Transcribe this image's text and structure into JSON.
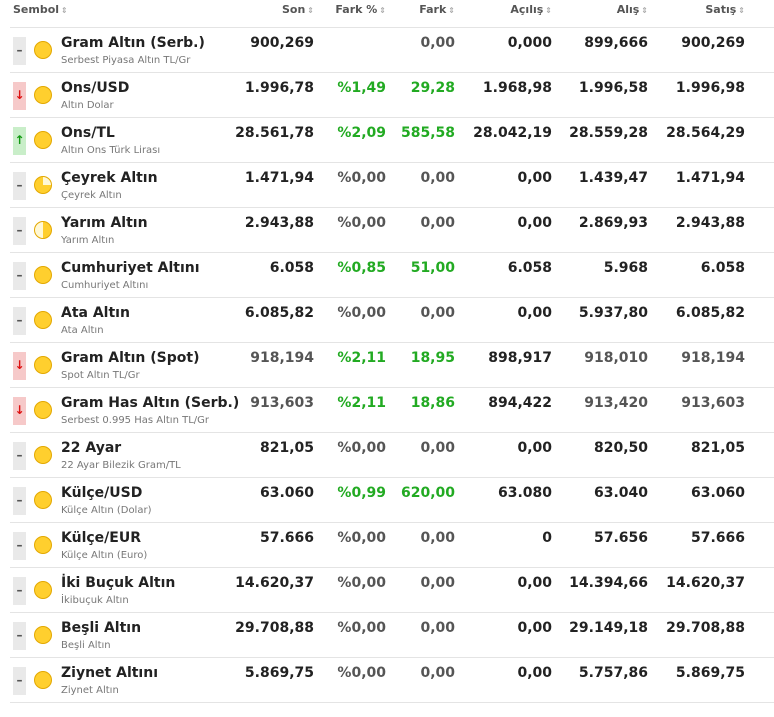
{
  "header": {
    "sembol": "Sembol",
    "son": "Son",
    "fark_pct": "Fark %",
    "fark": "Fark",
    "acilis": "Açılış",
    "alis": "Alış",
    "satis": "Satış",
    "sort_glyph": "⇕"
  },
  "colors": {
    "up": "#22aa22",
    "down": "#dd1111",
    "coin": "#ffcf2e"
  },
  "rows": [
    {
      "trend": "flat",
      "coin": "full",
      "name": "Gram Altın (Serb.)",
      "sub": "Serbest Piyasa Altın TL/Gr",
      "son": "900,269",
      "pct": "",
      "fark": "0,00",
      "acilis": "0,000",
      "alis": "899,666",
      "satis": "900,269",
      "pct_color": "grey",
      "fark_color": "grey",
      "muted": false
    },
    {
      "trend": "down",
      "coin": "full",
      "name": "Ons/USD",
      "sub": "Altın Dolar",
      "son": "1.996,78",
      "pct": "%1,49",
      "fark": "29,28",
      "acilis": "1.968,98",
      "alis": "1.996,58",
      "satis": "1.996,98",
      "pct_color": "green",
      "fark_color": "green",
      "muted": false
    },
    {
      "trend": "up",
      "coin": "full",
      "name": "Ons/TL",
      "sub": "Altın Ons Türk Lirası",
      "son": "28.561,78",
      "pct": "%2,09",
      "fark": "585,58",
      "acilis": "28.042,19",
      "alis": "28.559,28",
      "satis": "28.564,29",
      "pct_color": "green",
      "fark_color": "green",
      "muted": false
    },
    {
      "trend": "flat",
      "coin": "quarter",
      "name": "Çeyrek Altın",
      "sub": "Çeyrek Altın",
      "son": "1.471,94",
      "pct": "%0,00",
      "fark": "0,00",
      "acilis": "0,00",
      "alis": "1.439,47",
      "satis": "1.471,94",
      "pct_color": "grey",
      "fark_color": "grey",
      "muted": false
    },
    {
      "trend": "flat",
      "coin": "half",
      "name": "Yarım Altın",
      "sub": "Yarım Altın",
      "son": "2.943,88",
      "pct": "%0,00",
      "fark": "0,00",
      "acilis": "0,00",
      "alis": "2.869,93",
      "satis": "2.943,88",
      "pct_color": "grey",
      "fark_color": "grey",
      "muted": false
    },
    {
      "trend": "flat",
      "coin": "full",
      "name": "Cumhuriyet Altını",
      "sub": "Cumhuriyet Altını",
      "son": "6.058",
      "pct": "%0,85",
      "fark": "51,00",
      "acilis": "6.058",
      "alis": "5.968",
      "satis": "6.058",
      "pct_color": "green",
      "fark_color": "green",
      "muted": false
    },
    {
      "trend": "flat",
      "coin": "full",
      "name": "Ata Altın",
      "sub": "Ata Altın",
      "son": "6.085,82",
      "pct": "%0,00",
      "fark": "0,00",
      "acilis": "0,00",
      "alis": "5.937,80",
      "satis": "6.085,82",
      "pct_color": "grey",
      "fark_color": "grey",
      "muted": false
    },
    {
      "trend": "down",
      "coin": "full",
      "name": "Gram Altın (Spot)",
      "sub": "Spot Altın TL/Gr",
      "son": "918,194",
      "pct": "%2,11",
      "fark": "18,95",
      "acilis": "898,917",
      "alis": "918,010",
      "satis": "918,194",
      "pct_color": "green",
      "fark_color": "green",
      "muted": true
    },
    {
      "trend": "down",
      "coin": "full",
      "name": "Gram Has Altın (Serb.)",
      "sub": "Serbest 0.995 Has Altın TL/Gr",
      "son": "913,603",
      "pct": "%2,11",
      "fark": "18,86",
      "acilis": "894,422",
      "alis": "913,420",
      "satis": "913,603",
      "pct_color": "green",
      "fark_color": "green",
      "muted": true
    },
    {
      "trend": "flat",
      "coin": "full",
      "name": "22 Ayar",
      "sub": "22 Ayar Bilezik Gram/TL",
      "son": "821,05",
      "pct": "%0,00",
      "fark": "0,00",
      "acilis": "0,00",
      "alis": "820,50",
      "satis": "821,05",
      "pct_color": "grey",
      "fark_color": "grey",
      "muted": false
    },
    {
      "trend": "flat",
      "coin": "full",
      "name": "Külçe/USD",
      "sub": "Külçe Altın (Dolar)",
      "son": "63.060",
      "pct": "%0,99",
      "fark": "620,00",
      "acilis": "63.080",
      "alis": "63.040",
      "satis": "63.060",
      "pct_color": "green",
      "fark_color": "green",
      "muted": false
    },
    {
      "trend": "flat",
      "coin": "full",
      "name": "Külçe/EUR",
      "sub": "Külçe Altın (Euro)",
      "son": "57.666",
      "pct": "%0,00",
      "fark": "0,00",
      "acilis": "0",
      "alis": "57.656",
      "satis": "57.666",
      "pct_color": "grey",
      "fark_color": "grey",
      "muted": false
    },
    {
      "trend": "flat",
      "coin": "full",
      "name": "İki Buçuk Altın",
      "sub": "İkibuçuk Altın",
      "son": "14.620,37",
      "pct": "%0,00",
      "fark": "0,00",
      "acilis": "0,00",
      "alis": "14.394,66",
      "satis": "14.620,37",
      "pct_color": "grey",
      "fark_color": "grey",
      "muted": false
    },
    {
      "trend": "flat",
      "coin": "full",
      "name": "Beşli Altın",
      "sub": "Beşli Altın",
      "son": "29.708,88",
      "pct": "%0,00",
      "fark": "0,00",
      "acilis": "0,00",
      "alis": "29.149,18",
      "satis": "29.708,88",
      "pct_color": "grey",
      "fark_color": "grey",
      "muted": false
    },
    {
      "trend": "flat",
      "coin": "full",
      "name": "Ziynet Altını",
      "sub": "Ziynet Altın",
      "son": "5.869,75",
      "pct": "%0,00",
      "fark": "0,00",
      "acilis": "0,00",
      "alis": "5.757,86",
      "satis": "5.869,75",
      "pct_color": "grey",
      "fark_color": "grey",
      "muted": false
    }
  ]
}
